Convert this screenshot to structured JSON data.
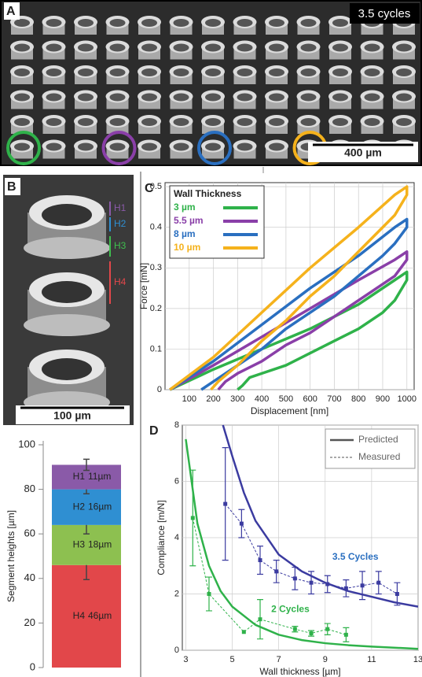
{
  "panels": {
    "A": {
      "label": "A",
      "caption": "3.5 cycles",
      "scale": "400 µm"
    },
    "B": {
      "label": "B",
      "scale": "100 µm",
      "segments": [
        "H1",
        "H2",
        "H3",
        "H4"
      ]
    },
    "C": {
      "label": "C"
    },
    "D": {
      "label": "D"
    }
  },
  "chart_data": [
    {
      "type": "stacked-bar",
      "ylabel": "Segment heights [µm]",
      "ylim": [
        0,
        100
      ],
      "yticks": [
        0,
        20,
        40,
        60,
        80,
        100
      ],
      "series": [
        {
          "name": "H4",
          "color": "#e2474a",
          "values": [
            46
          ],
          "value_labels": [
            "46µm"
          ],
          "errors": [
            6.5
          ]
        },
        {
          "name": "H3",
          "color": "#8dc050",
          "values": [
            18
          ],
          "value_labels": [
            "18µm"
          ],
          "errors": [
            4
          ]
        },
        {
          "name": "H2",
          "color": "#2f8fd2",
          "values": [
            16
          ],
          "value_labels": [
            "16µm"
          ],
          "errors": [
            2
          ]
        },
        {
          "name": "H1",
          "color": "#8a5aa8",
          "values": [
            11
          ],
          "value_labels": [
            "11µm"
          ],
          "errors": [
            2.5
          ]
        }
      ]
    },
    {
      "type": "line",
      "xlabel": "Displacement [nm]",
      "ylabel": "Force [mN]",
      "xlim": [
        0,
        1030
      ],
      "ylim": [
        0,
        0.51
      ],
      "xticks": [
        100,
        200,
        300,
        400,
        500,
        600,
        700,
        800,
        900,
        1000
      ],
      "yticks": [
        0,
        0.1,
        0.2,
        0.3,
        0.4,
        0.5
      ],
      "grid": true,
      "legend_title": "Wall Thickness",
      "legend": "upper left",
      "series": [
        {
          "name": "3 µm",
          "color": "#2fb24a",
          "x": [
            20,
            200,
            400,
            600,
            800,
            950,
            1000,
            1000,
            950,
            900,
            800,
            700,
            600,
            500,
            400,
            350,
            320,
            300
          ],
          "values": [
            0,
            0.05,
            0.1,
            0.15,
            0.21,
            0.27,
            0.29,
            0.27,
            0.22,
            0.19,
            0.15,
            0.12,
            0.09,
            0.06,
            0.04,
            0.03,
            0.01,
            0
          ]
        },
        {
          "name": "5.5 µm",
          "color": "#8a3fa8",
          "x": [
            20,
            200,
            400,
            600,
            800,
            950,
            1000,
            1000,
            950,
            900,
            800,
            700,
            600,
            500,
            400,
            300,
            250,
            220
          ],
          "values": [
            0,
            0.06,
            0.13,
            0.2,
            0.27,
            0.32,
            0.34,
            0.32,
            0.28,
            0.26,
            0.22,
            0.18,
            0.14,
            0.11,
            0.07,
            0.04,
            0.02,
            0
          ]
        },
        {
          "name": "8 µm",
          "color": "#2a6fc0",
          "x": [
            20,
            200,
            400,
            600,
            800,
            950,
            1000,
            1000,
            950,
            900,
            800,
            700,
            600,
            500,
            400,
            300,
            200,
            150
          ],
          "values": [
            0,
            0.07,
            0.16,
            0.25,
            0.33,
            0.4,
            0.42,
            0.4,
            0.36,
            0.33,
            0.28,
            0.23,
            0.19,
            0.15,
            0.1,
            0.06,
            0.02,
            0
          ]
        },
        {
          "name": "10 µm",
          "color": "#f5b21c",
          "x": [
            20,
            200,
            400,
            600,
            800,
            950,
            1000,
            1000,
            950,
            900,
            800,
            700,
            600,
            500,
            400,
            300,
            220,
            190
          ],
          "values": [
            0,
            0.08,
            0.19,
            0.3,
            0.4,
            0.48,
            0.5,
            0.48,
            0.43,
            0.4,
            0.34,
            0.28,
            0.23,
            0.17,
            0.12,
            0.06,
            0.02,
            0
          ]
        }
      ]
    },
    {
      "type": "line",
      "xlabel": "Wall thickness [µm]",
      "ylabel": "Compliance [m/N]",
      "xlim": [
        2.85,
        13
      ],
      "ylim": [
        0,
        8
      ],
      "xticks": [
        3,
        5,
        7,
        9,
        11,
        13
      ],
      "yticks": [
        0,
        2,
        4,
        6,
        8
      ],
      "grid": true,
      "legend": "upper right",
      "legend_entries": [
        {
          "name": "Predicted",
          "style": "solid"
        },
        {
          "name": "Measured",
          "style": "dashed"
        }
      ],
      "annotations": [
        {
          "text": "3.5 Cycles",
          "color": "#2a6fc0"
        },
        {
          "text": "2 Cycles",
          "color": "#2fb24a"
        }
      ],
      "series": [
        {
          "color": "#3b3ba0",
          "style": "solid",
          "x": [
            4.6,
            5,
            5.5,
            6,
            7,
            8,
            9,
            10,
            11,
            12,
            13
          ],
          "values": [
            8,
            6.9,
            5.6,
            4.6,
            3.4,
            2.8,
            2.4,
            2.1,
            1.9,
            1.7,
            1.55
          ]
        },
        {
          "color": "#2fb24a",
          "style": "solid",
          "x": [
            3,
            3.5,
            4,
            4.5,
            5,
            6,
            7,
            8,
            9,
            10,
            11,
            13
          ],
          "values": [
            7.5,
            4.5,
            3,
            2.1,
            1.55,
            0.9,
            0.55,
            0.36,
            0.25,
            0.18,
            0.13,
            0.05
          ]
        },
        {
          "color": "#3b3ba0",
          "style": "dashed",
          "x": [
            4.7,
            5.4,
            6.2,
            6.9,
            7.7,
            8.4,
            9.1,
            9.9,
            10.6,
            11.3,
            12.1
          ],
          "values": [
            5.2,
            4.5,
            3.2,
            2.8,
            2.55,
            2.4,
            2.35,
            2.2,
            2.3,
            2.4,
            2
          ],
          "errors": [
            2,
            0.5,
            0.5,
            0.4,
            0.4,
            0.4,
            0.3,
            0.3,
            0.5,
            0.4,
            0.4
          ]
        },
        {
          "color": "#2fb24a",
          "style": "dashed",
          "x": [
            3.3,
            4,
            5.5,
            6.2,
            7.7,
            8.4,
            9.1,
            9.9
          ],
          "values": [
            4.7,
            2,
            0.65,
            1.1,
            0.75,
            0.6,
            0.75,
            0.55
          ],
          "errors": [
            1.7,
            0.6,
            0,
            0.7,
            0.1,
            0.1,
            0.2,
            0.25
          ]
        }
      ]
    }
  ]
}
